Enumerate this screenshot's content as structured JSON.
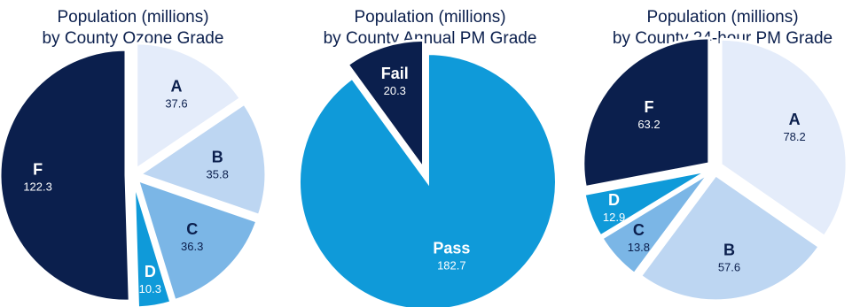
{
  "chart_data": [
    {
      "type": "pie",
      "title": "Population (millions)",
      "subtitle": "by County Ozone Grade",
      "slices": [
        {
          "label": "A",
          "value": 37.6,
          "color": "#e4ecfa"
        },
        {
          "label": "B",
          "value": 35.8,
          "color": "#bdd6f2"
        },
        {
          "label": "C",
          "value": 36.3,
          "color": "#7bb6e6"
        },
        {
          "label": "D",
          "value": 10.3,
          "color": "#0f9ad9"
        },
        {
          "label": "F",
          "value": 122.3,
          "color": "#0b1f4d"
        }
      ]
    },
    {
      "type": "pie",
      "title": "Population (millions)",
      "subtitle": "by County Annual PM Grade",
      "slices": [
        {
          "label": "Pass",
          "value": 182.7,
          "color": "#0f9ad9"
        },
        {
          "label": "Fail",
          "value": 20.3,
          "color": "#0b1f4d"
        }
      ]
    },
    {
      "type": "pie",
      "title": "Population (millions)",
      "subtitle": "by County 24-hour PM Grade",
      "slices": [
        {
          "label": "A",
          "value": 78.2,
          "color": "#e4ecfa"
        },
        {
          "label": "B",
          "value": 57.6,
          "color": "#bdd6f2"
        },
        {
          "label": "C",
          "value": 13.8,
          "color": "#7bb6e6"
        },
        {
          "label": "D",
          "value": 12.9,
          "color": "#0f9ad9"
        },
        {
          "label": "F",
          "value": 63.2,
          "color": "#0b1f4d"
        }
      ]
    }
  ]
}
